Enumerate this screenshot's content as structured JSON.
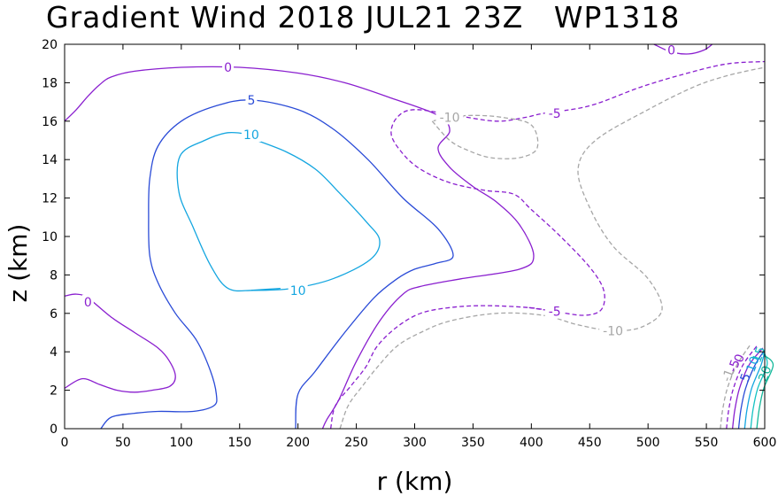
{
  "chart_data": {
    "type": "contour",
    "title": "Gradient Wind 2018 JUL21 23Z   WP1318",
    "xlabel": "r (km)",
    "ylabel": "z (km)",
    "xlim": [
      0,
      600
    ],
    "ylim": [
      0,
      20
    ],
    "xticks": [
      0,
      50,
      100,
      150,
      200,
      250,
      300,
      350,
      400,
      450,
      500,
      550,
      600
    ],
    "yticks": [
      0,
      2,
      4,
      6,
      8,
      10,
      12,
      14,
      16,
      18,
      20
    ],
    "xtick_labels": [
      "0",
      "50",
      "100",
      "150",
      "200",
      "250",
      "300",
      "350",
      "400",
      "450",
      "500",
      "550",
      "600"
    ],
    "ytick_labels": [
      "0",
      "2",
      "4",
      "6",
      "8",
      "10",
      "12",
      "14",
      "16",
      "18",
      "20"
    ],
    "grid": false,
    "contours": [
      {
        "level": 0,
        "label": "0",
        "color": "#8a1fcf",
        "dashed": false,
        "points": [
          [
            0,
            16
          ],
          [
            10,
            16.6
          ],
          [
            20,
            17.3
          ],
          [
            30,
            17.9
          ],
          [
            40,
            18.3
          ],
          [
            60,
            18.6
          ],
          [
            100,
            18.8
          ],
          [
            150,
            18.8
          ],
          [
            200,
            18.5
          ],
          [
            240,
            18
          ],
          [
            280,
            17.2
          ],
          [
            320,
            16.3
          ],
          [
            330,
            15.5
          ],
          [
            320,
            14.6
          ],
          [
            330,
            13.6
          ],
          [
            350,
            12.6
          ],
          [
            370,
            11.8
          ],
          [
            390,
            10.6
          ],
          [
            402,
            9
          ],
          [
            390,
            8.3
          ],
          [
            340,
            7.8
          ],
          [
            305,
            7.4
          ],
          [
            290,
            7
          ],
          [
            270,
            5.6
          ],
          [
            250,
            3.5
          ],
          [
            235,
            1.5
          ],
          [
            225,
            0.5
          ],
          [
            221,
            0
          ]
        ],
        "label_at": [
          140,
          18.8
        ]
      },
      {
        "level": 0,
        "label": "0",
        "color": "#8a1fcf",
        "dashed": false,
        "points": [
          [
            0,
            6.9
          ],
          [
            10,
            7
          ],
          [
            20,
            6.8
          ],
          [
            40,
            5.8
          ],
          [
            60,
            5
          ],
          [
            80,
            4.2
          ],
          [
            90,
            3.5
          ],
          [
            95,
            2.7
          ],
          [
            90,
            2.2
          ],
          [
            75,
            2
          ],
          [
            60,
            1.9
          ],
          [
            45,
            2
          ],
          [
            30,
            2.3
          ],
          [
            15,
            2.6
          ],
          [
            0,
            2.1
          ]
        ],
        "label_at": [
          20,
          6.6
        ]
      },
      {
        "level": 0,
        "label": "0",
        "color": "#8a1fcf",
        "dashed": false,
        "points": [
          [
            505,
            20
          ],
          [
            520,
            19.6
          ],
          [
            535,
            19.5
          ],
          [
            548,
            19.7
          ],
          [
            555,
            20
          ]
        ],
        "label_at": [
          520,
          19.7
        ]
      },
      {
        "level": 5,
        "label": "5",
        "color": "#2a4bd7",
        "dashed": false,
        "points": [
          [
            31,
            0
          ],
          [
            40,
            0.6
          ],
          [
            60,
            0.8
          ],
          [
            80,
            0.9
          ],
          [
            110,
            0.9
          ],
          [
            128,
            1.2
          ],
          [
            130,
            1.8
          ],
          [
            125,
            3
          ],
          [
            113,
            4.6
          ],
          [
            95,
            6
          ],
          [
            80,
            7.6
          ],
          [
            73,
            9
          ],
          [
            72,
            11
          ],
          [
            73,
            13
          ],
          [
            80,
            14.7
          ],
          [
            100,
            16
          ],
          [
            130,
            16.8
          ],
          [
            160,
            17.1
          ],
          [
            200,
            16.6
          ],
          [
            230,
            15.6
          ],
          [
            260,
            14
          ],
          [
            290,
            12
          ],
          [
            320,
            10.4
          ],
          [
            333,
            9
          ],
          [
            318,
            8.6
          ],
          [
            300,
            8.3
          ],
          [
            285,
            7.8
          ],
          [
            265,
            6.8
          ],
          [
            240,
            5
          ],
          [
            215,
            3
          ],
          [
            200,
            1.8
          ],
          [
            198,
            0
          ]
        ],
        "label_at": [
          160,
          17.1
        ]
      },
      {
        "level": 10,
        "label": "10",
        "color": "#14a6e0",
        "dashed": false,
        "points": [
          [
            160,
            15.1
          ],
          [
            190,
            14.4
          ],
          [
            215,
            13.5
          ],
          [
            235,
            12.3
          ],
          [
            258,
            10.8
          ],
          [
            270,
            9.8
          ],
          [
            262,
            8.8
          ],
          [
            230,
            7.8
          ],
          [
            195,
            7.3
          ],
          [
            162,
            7.2
          ],
          [
            140,
            7.3
          ],
          [
            125,
            8.5
          ],
          [
            110,
            10.5
          ],
          [
            98,
            12.3
          ],
          [
            99,
            14.2
          ],
          [
            120,
            15
          ],
          [
            140,
            15.4
          ],
          [
            160,
            15.3
          ]
        ],
        "label_at": [
          160,
          15.3
        ]
      },
      {
        "level": 10,
        "label": "10",
        "color": "#14a6e0",
        "dashed": false,
        "points": [
          [
            160,
            7.2
          ],
          [
            185,
            7.3
          ]
        ],
        "label_at": [
          200,
          7.2
        ]
      },
      {
        "level": -5,
        "label": "-5",
        "color": "#8a1fcf",
        "dashed": true,
        "points": [
          [
            228,
            0
          ],
          [
            232,
            1.2
          ],
          [
            245,
            2.2
          ],
          [
            258,
            3.2
          ],
          [
            268,
            4.3
          ],
          [
            285,
            5.3
          ],
          [
            305,
            6
          ],
          [
            330,
            6.3
          ],
          [
            360,
            6.4
          ],
          [
            398,
            6.3
          ],
          [
            420,
            6.1
          ],
          [
            445,
            5.9
          ],
          [
            460,
            6.2
          ],
          [
            462,
            7.2
          ],
          [
            450,
            8.4
          ],
          [
            425,
            10
          ],
          [
            400,
            11.4
          ],
          [
            385,
            12.2
          ],
          [
            360,
            12.4
          ],
          [
            330,
            12.8
          ],
          [
            305,
            13.5
          ],
          [
            290,
            14.3
          ],
          [
            280,
            15.3
          ],
          [
            285,
            16.2
          ],
          [
            300,
            16.6
          ],
          [
            335,
            16.3
          ],
          [
            370,
            16
          ],
          [
            395,
            16.2
          ],
          [
            410,
            16.4
          ],
          [
            450,
            16.8
          ],
          [
            495,
            17.8
          ],
          [
            540,
            18.6
          ],
          [
            570,
            19
          ],
          [
            600,
            19.1
          ]
        ],
        "label_at": [
          420,
          16.4
        ]
      },
      {
        "level": -5,
        "label": "-5",
        "color": "#8a1fcf",
        "dashed": true,
        "points": [
          [
            398,
            6.3
          ],
          [
            420,
            6.1
          ]
        ],
        "label_at": [
          420,
          6.1
        ]
      },
      {
        "level": -10,
        "label": "-10",
        "color": "#a6a6a6",
        "dashed": true,
        "points": [
          [
            236,
            0
          ],
          [
            243,
            1.2
          ],
          [
            255,
            2.2
          ],
          [
            268,
            3.2
          ],
          [
            285,
            4.3
          ],
          [
            305,
            5
          ],
          [
            330,
            5.6
          ],
          [
            370,
            6
          ],
          [
            410,
            5.9
          ],
          [
            440,
            5.4
          ],
          [
            470,
            5.1
          ],
          [
            495,
            5.3
          ],
          [
            512,
            6.2
          ],
          [
            500,
            7.8
          ],
          [
            470,
            9.5
          ],
          [
            450,
            11.5
          ],
          [
            440,
            13.5
          ],
          [
            455,
            15
          ],
          [
            500,
            16.6
          ],
          [
            540,
            17.8
          ],
          [
            570,
            18.4
          ],
          [
            600,
            18.8
          ]
        ],
        "label_at": [
          470,
          5.1
        ]
      },
      {
        "level": -10,
        "label": "-10",
        "color": "#a6a6a6",
        "dashed": true,
        "points": [
          [
            315,
            16
          ],
          [
            330,
            15
          ],
          [
            345,
            14.5
          ],
          [
            365,
            14.1
          ],
          [
            390,
            14.1
          ],
          [
            405,
            14.6
          ],
          [
            400,
            15.8
          ],
          [
            375,
            16.2
          ],
          [
            350,
            16.3
          ],
          [
            330,
            16.2
          ],
          [
            315,
            16
          ]
        ],
        "label_at": [
          330,
          16.2
        ]
      }
    ],
    "edge_contours": [
      {
        "label": "-1",
        "color": "#a6a6a6",
        "dashed": true
      },
      {
        "label": "-5",
        "color": "#8a1fcf",
        "dashed": true
      },
      {
        "label": "0",
        "color": "#8a1fcf",
        "dashed": false
      },
      {
        "label": "5",
        "color": "#2a4bd7",
        "dashed": false
      },
      {
        "label": "10",
        "color": "#14a6e0",
        "dashed": false
      },
      {
        "label": "15",
        "color": "#14c2c2",
        "dashed": false
      },
      {
        "label": "20",
        "color": "#13b89a",
        "dashed": false
      }
    ]
  }
}
